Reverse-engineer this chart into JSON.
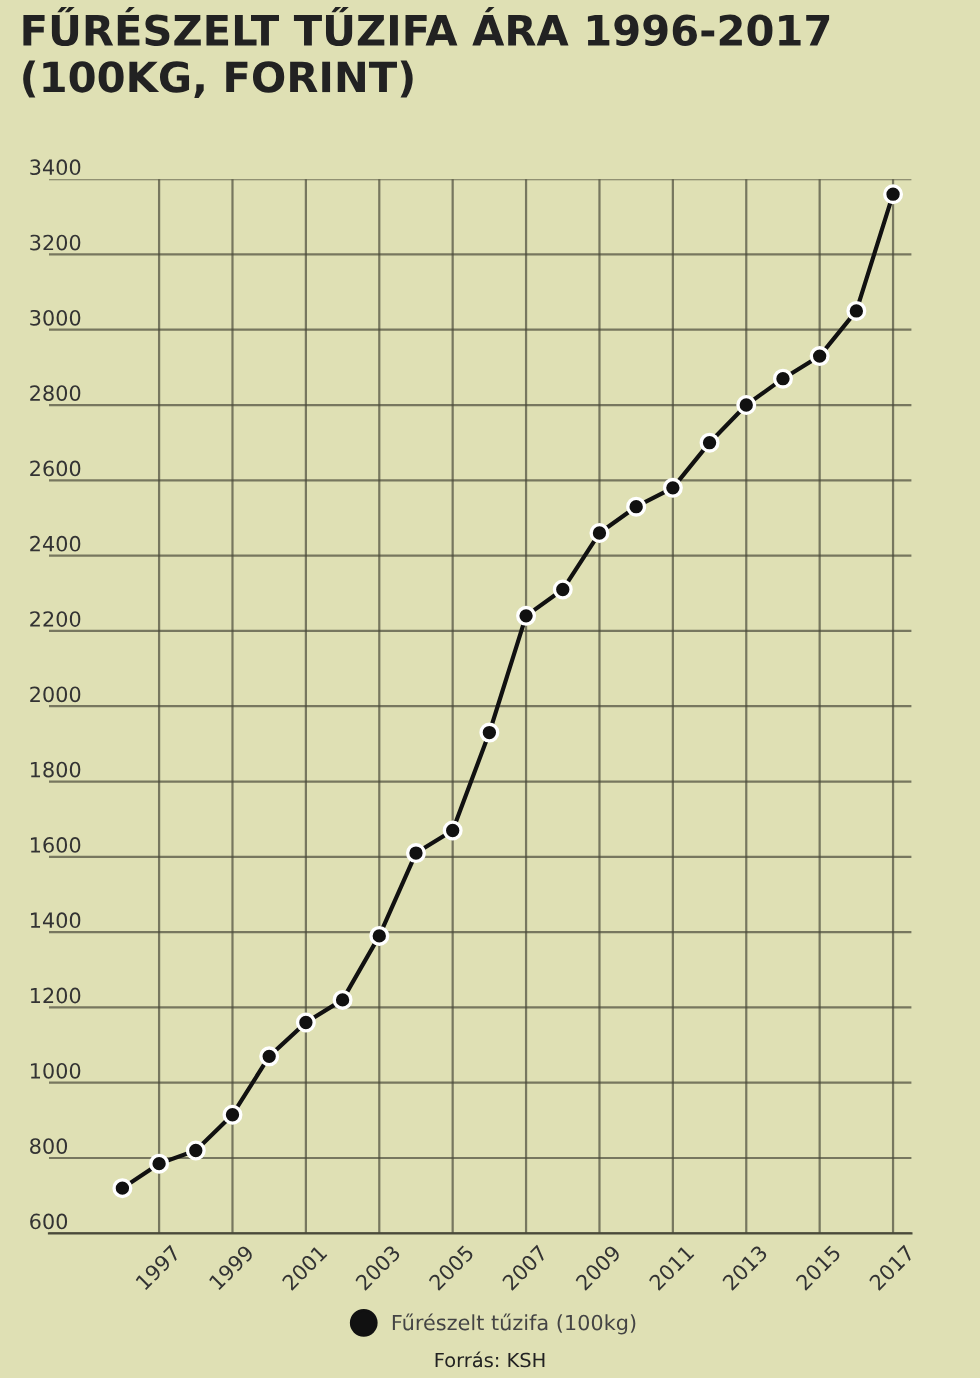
{
  "chart_data": {
    "type": "line",
    "title": "FŰRÉSZELT TŰZIFA ÁRA 1996-2017\n(100KG, FORINT)",
    "x": [
      1996,
      1997,
      1998,
      1999,
      2000,
      2001,
      2002,
      2003,
      2004,
      2005,
      2006,
      2007,
      2008,
      2009,
      2010,
      2011,
      2012,
      2013,
      2014,
      2015,
      2016,
      2017
    ],
    "series": [
      {
        "name": "Fűrészelt tűzifa (100kg)",
        "color": "#111111",
        "values": [
          720,
          785,
          820,
          915,
          1070,
          1160,
          1220,
          1390,
          1610,
          1670,
          1930,
          2240,
          2310,
          2460,
          2530,
          2580,
          2700,
          2800,
          2870,
          2930,
          3050,
          3360
        ]
      }
    ],
    "xlim": [
      1994,
      2017.5
    ],
    "xticks": [
      1997,
      1999,
      2001,
      2003,
      2005,
      2007,
      2009,
      2011,
      2013,
      2015,
      2017
    ],
    "ylim": [
      600,
      3400
    ],
    "yticks": [
      600,
      800,
      1000,
      1200,
      1400,
      1600,
      1800,
      2000,
      2200,
      2400,
      2600,
      2800,
      3000,
      3200,
      3400
    ],
    "grid": true,
    "legend": "bottom",
    "marker": "circle",
    "line_style": "solid",
    "annotations": [
      "Forrás: KSH"
    ]
  }
}
